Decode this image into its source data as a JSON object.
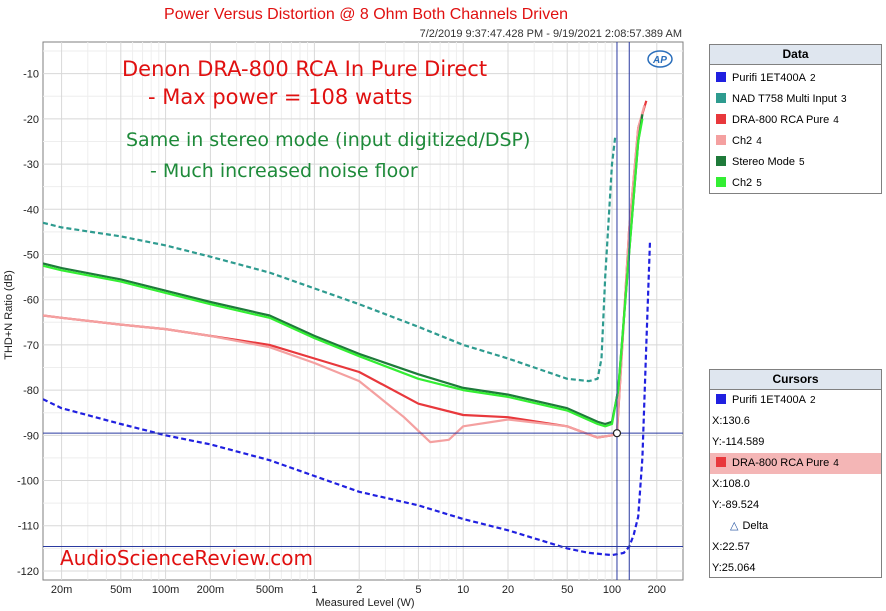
{
  "title": "Power Versus Distortion @ 8 Ohm Both Channels Driven",
  "timestamp": "7/2/2019 9:37:47.428 PM - 9/19/2021 2:08:57.389 AM",
  "watermark": "AudioScienceReview.com",
  "ap_logo": "AP",
  "annotations": {
    "line1": "Denon DRA-800 RCA In Pure Direct",
    "line2": "- Max power = 108 watts",
    "line3": "Same in stereo mode (input digitized/DSP)",
    "line4": "- Much increased noise floor"
  },
  "chart_data": {
    "type": "line",
    "title": "Power Versus Distortion @ 8 Ohm Both Channels Driven",
    "xlabel": "Measured Level (W)",
    "ylabel": "THD+N Ratio (dB)",
    "xscale": "log",
    "xlim": [
      0.015,
      300
    ],
    "ylim": [
      -122,
      -3
    ],
    "xticks": [
      {
        "v": 0.02,
        "label": "20m"
      },
      {
        "v": 0.05,
        "label": "50m"
      },
      {
        "v": 0.1,
        "label": "100m"
      },
      {
        "v": 0.2,
        "label": "200m"
      },
      {
        "v": 0.5,
        "label": "500m"
      },
      {
        "v": 1,
        "label": "1"
      },
      {
        "v": 2,
        "label": "2"
      },
      {
        "v": 5,
        "label": "5"
      },
      {
        "v": 10,
        "label": "10"
      },
      {
        "v": 20,
        "label": "20"
      },
      {
        "v": 50,
        "label": "50"
      },
      {
        "v": 100,
        "label": "100"
      },
      {
        "v": 200,
        "label": "200"
      }
    ],
    "yticks": [
      -10,
      -20,
      -30,
      -40,
      -50,
      -60,
      -70,
      -80,
      -90,
      -100,
      -110,
      -120
    ],
    "grid": true,
    "legend_position": "right",
    "series": [
      {
        "name": "Purifi 1ET400A",
        "num": "2",
        "color": "#2020e0",
        "dash": "dashed",
        "x": [
          0.015,
          0.02,
          0.05,
          0.1,
          0.2,
          0.5,
          1,
          2,
          5,
          10,
          20,
          50,
          70,
          100,
          120,
          130.6,
          140,
          150,
          160,
          170,
          180
        ],
        "y": [
          -82,
          -84,
          -87.5,
          -90,
          -92,
          -95.5,
          -99,
          -102.5,
          -105.5,
          -108.5,
          -111,
          -115,
          -116,
          -116.5,
          -116,
          -114.6,
          -112,
          -108,
          -95,
          -70,
          -47
        ]
      },
      {
        "name": "NAD T758 Multi Input",
        "num": "3",
        "color": "#2e9b8f",
        "dash": "dashed",
        "x": [
          0.015,
          0.02,
          0.05,
          0.1,
          0.2,
          0.5,
          1,
          2,
          5,
          10,
          20,
          50,
          70,
          80,
          85,
          90,
          100,
          105
        ],
        "y": [
          -43,
          -44,
          -46,
          -48,
          -50.5,
          -54,
          -57.5,
          -61,
          -66,
          -70,
          -73,
          -77.5,
          -78,
          -77.5,
          -73,
          -55,
          -30,
          -24
        ]
      },
      {
        "name": "DRA-800 RCA Pure",
        "num": "4",
        "color": "#e8383c",
        "dash": "solid",
        "x": [
          0.015,
          0.02,
          0.05,
          0.1,
          0.2,
          0.5,
          1,
          2,
          5,
          10,
          20,
          50,
          80,
          100,
          108,
          115,
          130,
          150,
          170
        ],
        "y": [
          -63.5,
          -64,
          -65.5,
          -66.5,
          -68,
          -70,
          -73,
          -76,
          -83,
          -85.5,
          -86,
          -88,
          -90.5,
          -90,
          -89.5,
          -75,
          -45,
          -22,
          -16
        ]
      },
      {
        "name": "Ch2",
        "num": "4",
        "color": "#f4a0a0",
        "dash": "solid",
        "x": [
          0.015,
          0.02,
          0.05,
          0.1,
          0.2,
          0.5,
          1,
          2,
          4,
          6,
          8,
          10,
          20,
          50,
          80,
          100,
          108,
          115,
          130,
          150,
          165
        ],
        "y": [
          -63.5,
          -64,
          -65.5,
          -66.5,
          -68,
          -70.5,
          -74,
          -78,
          -86,
          -91.5,
          -91,
          -88,
          -86.5,
          -88,
          -90.5,
          -90,
          -89,
          -75,
          -45,
          -22,
          -17
        ]
      },
      {
        "name": "Stereo Mode",
        "num": "5",
        "color": "#1e7a3a",
        "dash": "solid",
        "x": [
          0.015,
          0.02,
          0.05,
          0.1,
          0.2,
          0.5,
          1,
          2,
          5,
          10,
          20,
          50,
          80,
          90,
          100,
          110,
          130,
          150,
          160
        ],
        "y": [
          -52,
          -53,
          -55.5,
          -58,
          -60.5,
          -63.5,
          -68,
          -72,
          -76.5,
          -79.5,
          -81,
          -84,
          -87,
          -87.5,
          -87,
          -80,
          -50,
          -25,
          -19
        ]
      },
      {
        "name": "Ch2",
        "num": "5",
        "color": "#33ee33",
        "dash": "solid",
        "x": [
          0.015,
          0.02,
          0.05,
          0.1,
          0.2,
          0.5,
          1,
          2,
          5,
          10,
          20,
          50,
          80,
          90,
          100,
          110,
          130,
          150,
          160
        ],
        "y": [
          -52.5,
          -53.5,
          -56,
          -58.5,
          -61,
          -64,
          -68.5,
          -72.5,
          -77.5,
          -80,
          -81.5,
          -84.5,
          -87.5,
          -88,
          -87.5,
          -80,
          -50,
          -25,
          -20
        ]
      }
    ],
    "cursor_lines": [
      {
        "axis": "x",
        "value": 108.0
      },
      {
        "axis": "x",
        "value": 130.6
      },
      {
        "axis": "y",
        "value": -89.524
      },
      {
        "axis": "y",
        "value": -114.589
      }
    ],
    "cursor_marker": {
      "x": 108.0,
      "y": -89.524
    }
  },
  "data_panel": {
    "title": "Data",
    "items": [
      {
        "label": "Purifi 1ET400A",
        "num": "2",
        "color": "#2020e0"
      },
      {
        "label": "NAD T758 Multi Input",
        "num": "3",
        "color": "#2e9b8f"
      },
      {
        "label": "DRA-800 RCA Pure",
        "num": "4",
        "color": "#e8383c"
      },
      {
        "label": "Ch2",
        "num": "4",
        "color": "#f4a0a0"
      },
      {
        "label": "Stereo Mode",
        "num": "5",
        "color": "#1e7a3a"
      },
      {
        "label": "Ch2",
        "num": "5",
        "color": "#33ee33"
      }
    ]
  },
  "cursors_panel": {
    "title": "Cursors",
    "c1": {
      "label": "Purifi 1ET400A",
      "num": "2",
      "color": "#2020e0",
      "x": "X:130.6",
      "y": "Y:-114.589"
    },
    "c2": {
      "label": "DRA-800 RCA Pure",
      "num": "4",
      "color": "#e8383c",
      "x": "X:108.0",
      "y": "Y:-89.524"
    },
    "delta": {
      "label": "Delta",
      "x": "X:22.57",
      "y": "Y:25.064"
    }
  }
}
